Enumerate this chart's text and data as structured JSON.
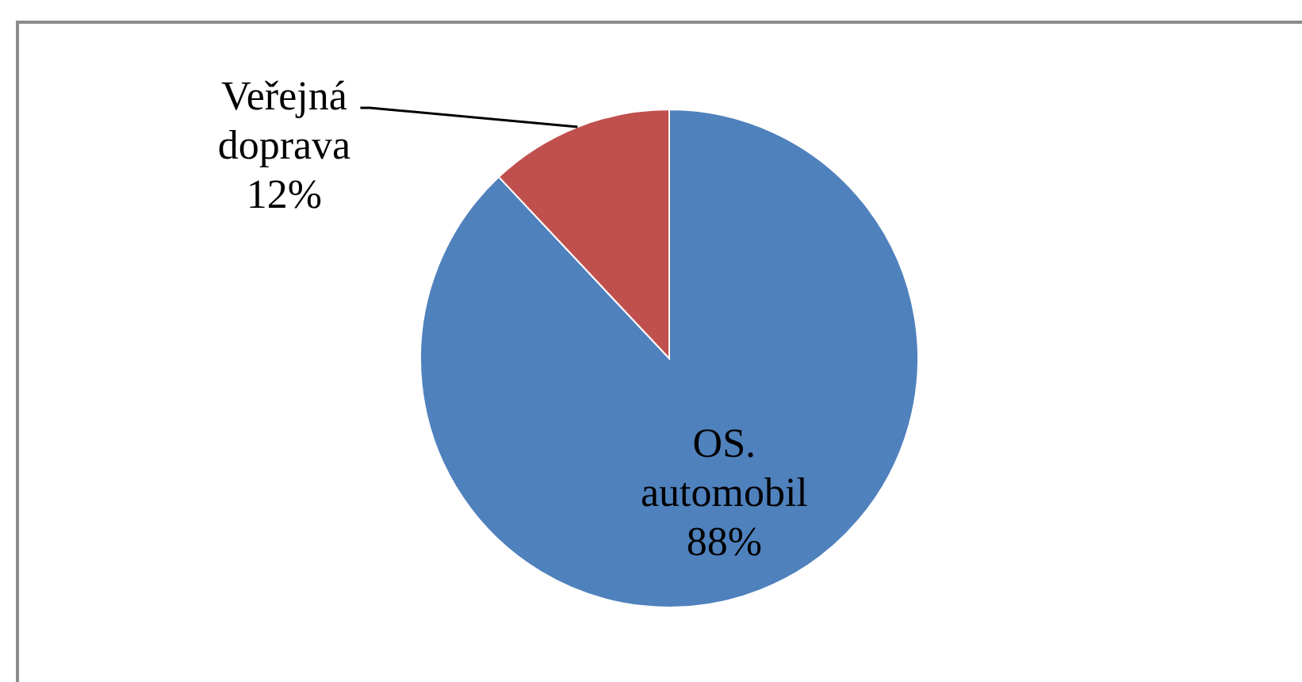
{
  "chart_data": {
    "type": "pie",
    "categories": [
      "OS. automobil",
      "Veřejná doprava"
    ],
    "values": [
      88,
      12
    ],
    "colors": [
      "#4f81bd",
      "#c0504d"
    ],
    "value_labels": [
      "88%",
      "12%"
    ]
  }
}
